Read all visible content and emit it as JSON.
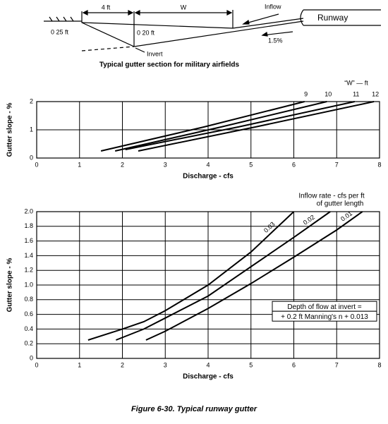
{
  "diagram": {
    "dim_left": "4 ft",
    "dim_width": "W",
    "inflow": "Inflow",
    "runway": "Runway",
    "depth_edge": "0 25 ft",
    "depth_invert": "0 20 ft",
    "slope": "1.5%",
    "invert": "Invert",
    "caption": "Typical gutter section for military airfields"
  },
  "chart_data": [
    {
      "type": "line",
      "legend_title": "“W” — ft",
      "xlabel": "Discharge - cfs",
      "ylabel": "Gutter slope - %",
      "color": "#000000",
      "grid": true,
      "xlim": [
        0,
        8
      ],
      "ylim": [
        0,
        2
      ],
      "xticks": [
        0,
        1,
        2,
        3,
        4,
        5,
        6,
        7,
        8
      ],
      "yticks": [
        0,
        1,
        2
      ],
      "series": [
        {
          "name": "9",
          "x": [
            1.5,
            3.9,
            6.25
          ],
          "values": [
            0.25,
            1.1,
            2
          ]
        },
        {
          "name": "10",
          "x": [
            1.83,
            4.3,
            6.77
          ],
          "values": [
            0.25,
            1.1,
            2
          ]
        },
        {
          "name": "11",
          "x": [
            2.07,
            4.7,
            7.42
          ],
          "values": [
            0.3,
            1.1,
            2
          ]
        },
        {
          "name": "12",
          "x": [
            2.37,
            5.1,
            7.87
          ],
          "values": [
            0.25,
            1.1,
            2
          ]
        }
      ]
    },
    {
      "type": "line",
      "legend_title": [
        "Inflow rate - cfs per ft",
        "of gutter length"
      ],
      "annotation": [
        "Depth of flow at invert =",
        "+ 0.2 ft Manning's n + 0.013"
      ],
      "xlabel": "Discharge - cfs",
      "ylabel": "Gutter slope - %",
      "color": "#000000",
      "grid": true,
      "xlim": [
        0,
        8
      ],
      "ylim": [
        0,
        2
      ],
      "xticks": [
        0,
        1,
        2,
        3,
        4,
        5,
        6,
        7,
        8
      ],
      "yticks": [
        0,
        0.2,
        0.4,
        0.6,
        0.8,
        {
          "value": 1,
          "label": "1.0"
        },
        1.2,
        1.4,
        1.6,
        1.8,
        {
          "value": 2,
          "label": "2.0"
        }
      ],
      "series": [
        {
          "name": "0.03",
          "x": [
            1.2,
            2.0,
            2.5,
            3.0,
            4.0,
            5.0,
            6.0
          ],
          "values": [
            0.25,
            0.4,
            0.5,
            0.65,
            1.0,
            1.45,
            2.0
          ]
        },
        {
          "name": "0.02",
          "x": [
            1.85,
            2.5,
            3.0,
            4.0,
            5.0,
            6.0,
            6.85
          ],
          "values": [
            0.25,
            0.4,
            0.55,
            0.85,
            1.25,
            1.65,
            2.0
          ]
        },
        {
          "name": "0.01",
          "x": [
            2.55,
            3.0,
            4.0,
            5.0,
            6.0,
            7.0,
            7.6
          ],
          "values": [
            0.25,
            0.37,
            0.68,
            1.02,
            1.38,
            1.75,
            2.0
          ]
        }
      ]
    }
  ],
  "figure_caption": "Figure 6-30.  Typical runway gutter"
}
